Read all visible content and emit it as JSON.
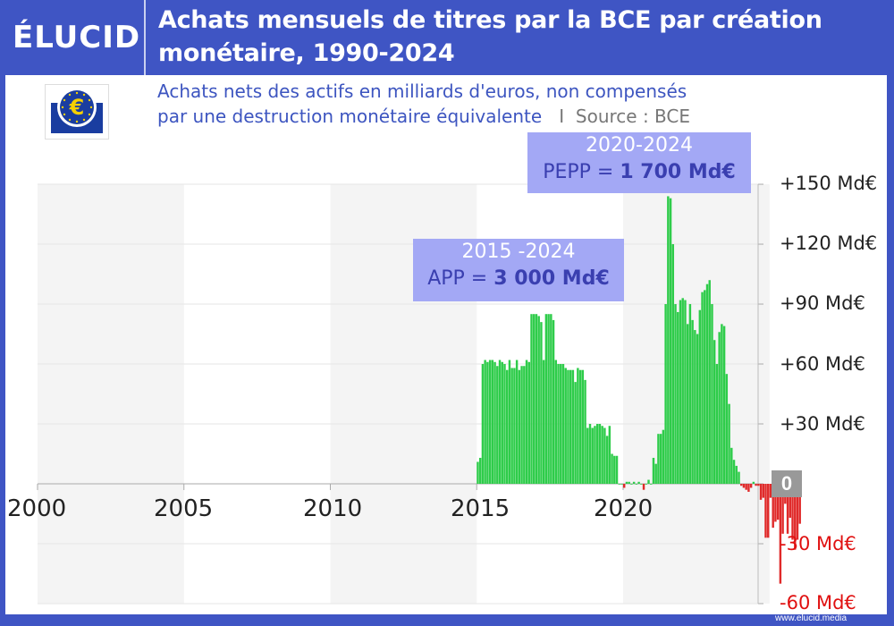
{
  "brand": {
    "logo_text": "ÉLUCID",
    "footer_url": "www.elucid.media"
  },
  "header": {
    "title_line1": "Achats mensuels de titres par la BCE par création",
    "title_line2": "monétaire, 1990-2024"
  },
  "subtitle": {
    "line1": "Achats nets des actifs en milliards d'euros, non compensés",
    "line2": "par une destruction monétaire équivalente",
    "separator": "I",
    "source": "Source : BCE"
  },
  "annotations": {
    "app": {
      "period": "2015 -2024",
      "prefix": "APP = ",
      "value": "3 000 Md€"
    },
    "pepp": {
      "period": "2020-2024",
      "prefix": "PEPP = ",
      "value": "1 700  Md€"
    }
  },
  "axis": {
    "y_labels": [
      "+150 Md€",
      "+120 Md€",
      "+90 Md€",
      "+60 Md€",
      "+30 Md€",
      "0",
      "-30 Md€",
      "-60 Md€"
    ],
    "x_labels": [
      "2000",
      "2005",
      "2010",
      "2015",
      "2020"
    ]
  },
  "colors": {
    "frame": "#3f55c4",
    "positive": "#2ecc4a",
    "negative": "#e02a2a",
    "annotation_bg": "#a3a8f5",
    "annotation_text": "#3a3fb0",
    "subtitle": "#3d55c0"
  },
  "chart_data": {
    "type": "bar",
    "title": "Achats mensuels de titres par la BCE par création monétaire, 1990-2024",
    "subtitle": "Achats nets des actifs en milliards d'euros, non compensés par une destruction monétaire équivalente",
    "source": "BCE",
    "xlabel": "",
    "ylabel": "Md€",
    "ylim": [
      -60,
      150
    ],
    "xlim": [
      "2000-01",
      "2024-12"
    ],
    "grid": true,
    "x_ticks": [
      2000,
      2005,
      2010,
      2015,
      2020
    ],
    "y_ticks": [
      -60,
      -30,
      0,
      30,
      60,
      90,
      120,
      150
    ],
    "start_month": "2015-01",
    "values": [
      11,
      13,
      60,
      62,
      61,
      62,
      62,
      61,
      59,
      62,
      61,
      60,
      57,
      62,
      58,
      58,
      62,
      57,
      59,
      59,
      62,
      61,
      85,
      85,
      85,
      84,
      81,
      62,
      85,
      85,
      85,
      82,
      62,
      60,
      60,
      60,
      58,
      57,
      57,
      57,
      51,
      58,
      57,
      57,
      52,
      28,
      30,
      28,
      29,
      30,
      30,
      29,
      28,
      24,
      29,
      15,
      14,
      14,
      0,
      0,
      -2,
      1,
      1,
      0,
      1,
      0,
      1,
      0,
      -3,
      0,
      2,
      0,
      13,
      10,
      25,
      25,
      27,
      90,
      144,
      143,
      120,
      90,
      86,
      92,
      93,
      92,
      80,
      90,
      82,
      77,
      75,
      87,
      96,
      97,
      100,
      102,
      90,
      72,
      60,
      76,
      80,
      79,
      55,
      40,
      18,
      12,
      9,
      6,
      -1,
      -2,
      -3,
      -4,
      -2,
      1,
      -1,
      -1,
      -8,
      -7,
      -27,
      -27,
      -7,
      -22,
      -19,
      -18,
      -50,
      -25,
      -10,
      -25,
      -17,
      -28,
      -33,
      -28,
      -20
    ],
    "series_notes": "Positive bars green, negative bars red. Peak ~144 Md€ in mid-2020. Minimum ~-52 Md€ in 2024.",
    "annotations": [
      {
        "text": "2015 -2024 APP = 3 000 Md€"
      },
      {
        "text": "2020-2024 PEPP = 1 700 Md€"
      }
    ]
  }
}
